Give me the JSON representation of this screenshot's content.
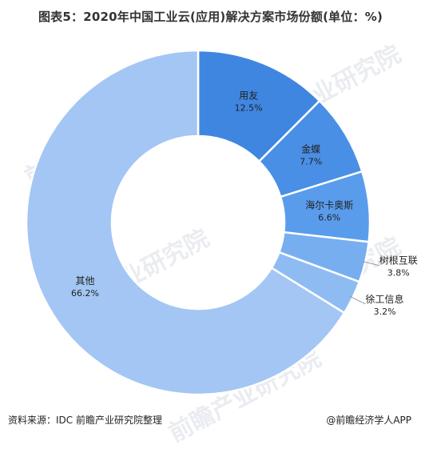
{
  "title": "图表5：2020年中国工业云(应用)解决方案市场份额(单位：%)",
  "footer": {
    "source": "资料来源：IDC 前瞻产业研究院整理",
    "brand": "@前瞻经济学人APP"
  },
  "watermark": "前瞻产业研究院",
  "colors": {
    "dark_blue": "#3f86e0",
    "mid_blue": "#5a9cec",
    "light_blue": "#a3c6f4",
    "label": "#222222"
  },
  "chart_data": {
    "type": "pie",
    "donut": true,
    "title": "2020年中国工业云(应用)解决方案市场份额(单位：%)",
    "slices": [
      {
        "name": "用友",
        "value": 12.5,
        "label": "12.5%",
        "color": "#3f86e0",
        "label_inside": true
      },
      {
        "name": "金蝶",
        "value": 7.7,
        "label": "7.7%",
        "color": "#4a8fe6",
        "label_inside": true
      },
      {
        "name": "海尔卡奥斯",
        "value": 6.6,
        "label": "6.6%",
        "color": "#5a9cec",
        "label_inside": true
      },
      {
        "name": "树根互联",
        "value": 3.8,
        "label": "3.8%",
        "color": "#76aef0",
        "label_inside": false
      },
      {
        "name": "徐工信息",
        "value": 3.2,
        "label": "3.2%",
        "color": "#8ebcf2",
        "label_inside": false
      },
      {
        "name": "其他",
        "value": 66.2,
        "label": "66.2%",
        "color": "#a3c6f4",
        "label_inside": true
      }
    ]
  }
}
